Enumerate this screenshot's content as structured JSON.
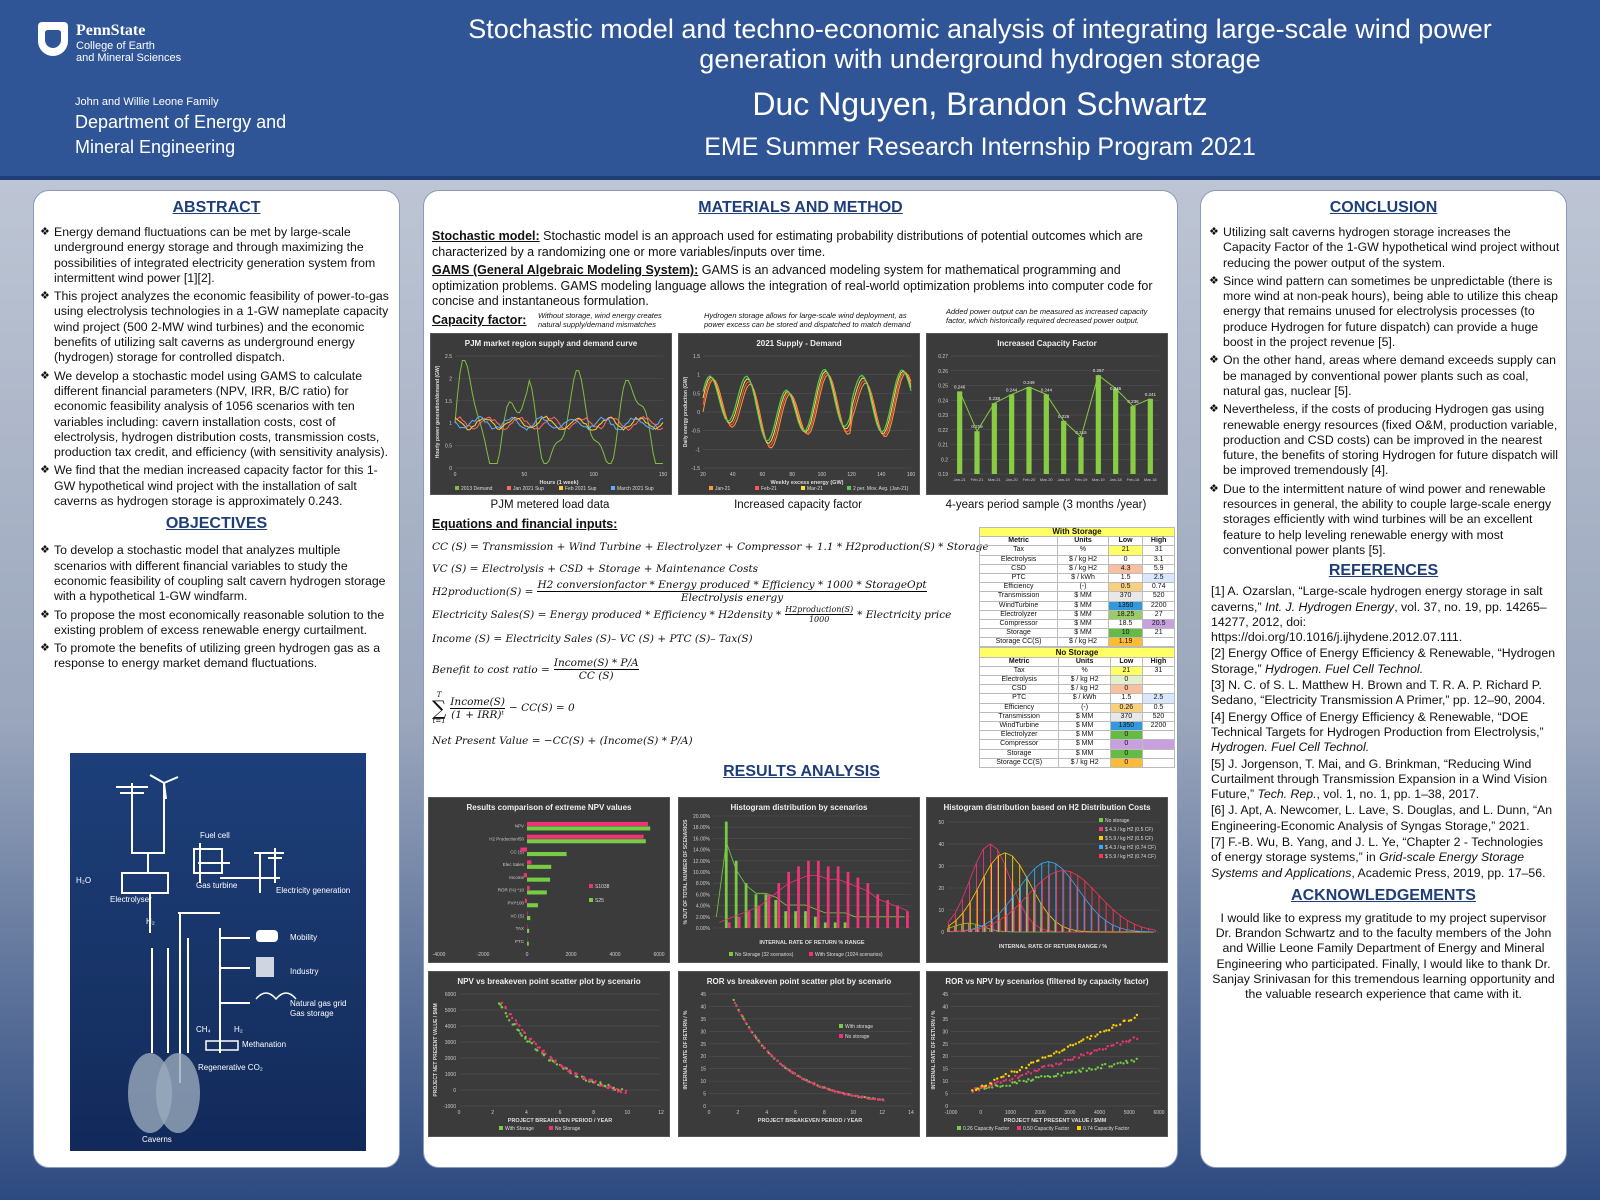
{
  "header": {
    "logo_name": "PennState",
    "logo_sub1": "College of Earth",
    "logo_sub2": "and Mineral Sciences",
    "dept_small": "John and Willie Leone Family",
    "dept_big1": "Department of Energy and",
    "dept_big2": "Mineral Engineering",
    "title_line1": "Stochastic model and techno-economic analysis of integrating large-scale wind power",
    "title_line2": "generation with underground hydrogen storage",
    "authors": "Duc Nguyen, Brandon Schwartz",
    "program": "EME Summer Research Internship Program 2021"
  },
  "abstract": {
    "heading": "ABSTRACT",
    "items": [
      "Energy demand fluctuations can be met by large-scale underground energy storage and through maximizing the possibilities of integrated electricity generation system from intermittent wind power [1][2].",
      "This project analyzes the economic feasibility of power-to-gas using electrolysis technologies in a 1-GW nameplate capacity wind project (500 2-MW wind turbines) and the economic benefits of utilizing salt caverns as underground energy (hydrogen) storage for controlled dispatch.",
      "We develop a stochastic model using GAMS to calculate different financial parameters (NPV, IRR, B/C ratio) for economic feasibility analysis of 1056 scenarios with ten variables including: cavern installation costs, cost of electrolysis, hydrogen distribution costs, transmission costs, production tax credit, and efficiency (with sensitivity analysis).",
      "We find that the median increased capacity factor for this 1-GW hypothetical wind project with the installation of salt caverns as hydrogen storage is approximately 0.243."
    ]
  },
  "objectives": {
    "heading": "OBJECTIVES",
    "items": [
      "To develop a stochastic model that analyzes multiple scenarios with different financial variables to study the economic feasibility of coupling salt cavern hydrogen storage with a hypothetical 1-GW windfarm.",
      "To propose the most economically reasonable solution to the existing problem of excess renewable energy curtailment.",
      "To promote the benefits of utilizing green hydrogen gas as a response to energy market demand fluctuations."
    ]
  },
  "diagram": {
    "fuel_cell": "Fuel cell",
    "h2o": "H₂O",
    "electrolyser": "Electrolyser",
    "gas_turbine": "Gas turbine",
    "electricity": "Electricity generation",
    "h2": "H₂",
    "mobility": "Mobility",
    "industry": "Industry",
    "gas_grid1": "Natural gas grid",
    "gas_grid2": "Gas storage",
    "ch4": "CH₄",
    "h2b": "H₂",
    "methanation": "Methanation",
    "co2": "Regenerative CO₂",
    "caverns": "Caverns"
  },
  "methods": {
    "heading": "MATERIALS AND METHOD",
    "stoch_label": "Stochastic model:",
    "stoch_text": " Stochastic model is an approach used for estimating probability distributions of potential outcomes which are characterized by a randomizing one or more variables/inputs over time.",
    "gams_label": "GAMS (General Algebraic Modeling System):",
    "gams_text": " GAMS is an advanced modeling system for mathematical programming and optimization problems. GAMS modeling language allows the integration of real-world optimization problems into computer code for concise and instantaneous formulation.",
    "cf_label": "Capacity factor:",
    "note1": "Without storage, wind energy creates natural supply/demand mismatches",
    "note2": "Hydrogen storage allows for large-scale wind deployment, as power excess can be stored and dispatched to match demand",
    "note3": "Added power output can be measured as increased capacity factor, which historically required decreased power output.",
    "cap1": "PJM metered load data",
    "cap2": "Increased capacity factor",
    "cap3": "4-years period sample (3 months /year)",
    "eq_label": "Equations and financial inputs:",
    "eq1": "CC (S) = Transmission + Wind Turbine + Electrolyzer + Compressor + 1.1 * H2production(S) * Storage",
    "eq2": "VC (S) =  Electrolysis + CSD + Storage + Maintenance Costs",
    "eq3a": "H2production(S) =",
    "eq3n": "H2 conversionfactor * Energy produced * Efficiency * 1000 * StorageOpt",
    "eq3d": "Electrolysis energy",
    "eq4a": "Electricity Sales(S) = Energy produced * Efficiency * H2density *",
    "eq4n": "H2production(S)",
    "eq4d": "1000",
    "eq4b": "* Electricity price",
    "eq5": "Income (S) =  Electricity Sales (S)– VC (S) +  PTC (S)– Tax(S)",
    "eq6a": "Benefit to cost ratio =",
    "eq6n": "Income(S) * P/A",
    "eq6d": "CC (S)",
    "eq7sum_top": "T",
    "eq7sum_bot": "t=1",
    "eq7n": "Income(S)",
    "eq7d": "(1 + IRR)ᵗ",
    "eq7b": "− CC(S) = 0",
    "eq8": "Net Present Value = −CC(S) + (Income(S) * P/A)"
  },
  "tables": {
    "with_title": "With Storage",
    "no_title": "No Storage",
    "cols": [
      "Metric",
      "Units",
      "Low",
      "High"
    ],
    "with_rows": [
      [
        "Tax",
        "%",
        "21",
        "31"
      ],
      [
        "Electrolysis",
        "$ / kg H2",
        "0",
        "3.1"
      ],
      [
        "CSD",
        "$ / kg H2",
        "4.3",
        "5.9"
      ],
      [
        "PTC",
        "$ / kWh",
        "1.5",
        "2.5"
      ],
      [
        "Efficiency",
        "(-)",
        "0.5",
        "0.74"
      ],
      [
        "Transmission",
        "$ MM",
        "370",
        "520"
      ],
      [
        "WindTurbine",
        "$ MM",
        "1350",
        "2200"
      ],
      [
        "Electrolyzer",
        "$ MM",
        "18.25",
        "27"
      ],
      [
        "Compressor",
        "$ MM",
        "18.5",
        "20.5"
      ],
      [
        "Storage",
        "$ MM",
        "10",
        "21"
      ],
      [
        "Storage CC(S)",
        "$ / kg H2",
        "1.19",
        ""
      ]
    ],
    "no_rows": [
      [
        "Tax",
        "%",
        "21",
        "31"
      ],
      [
        "Electrolysis",
        "$ / kg H2",
        "0",
        ""
      ],
      [
        "CSD",
        "$ / kg H2",
        "0",
        ""
      ],
      [
        "PTC",
        "$ / kWh",
        "1.5",
        "2.5"
      ],
      [
        "Efficiency",
        "(-)",
        "0.26",
        "0.5"
      ],
      [
        "Transmission",
        "$ MM",
        "370",
        "520"
      ],
      [
        "WindTurbine",
        "$ MM",
        "1350",
        "2200"
      ],
      [
        "Electrolyzer",
        "$ MM",
        "0",
        ""
      ],
      [
        "Compressor",
        "$ MM",
        "0",
        ""
      ],
      [
        "Storage",
        "$ MM",
        "0",
        ""
      ],
      [
        "Storage CC(S)",
        "$ / kg H2",
        "0",
        ""
      ]
    ]
  },
  "results": {
    "heading": "RESULTS ANALYSIS"
  },
  "conclusion": {
    "heading": "CONCLUSION",
    "items": [
      "Utilizing salt caverns hydrogen storage increases the Capacity Factor of the 1-GW hypothetical wind project without reducing the power output of the system.",
      "Since wind pattern can sometimes be unpredictable (there is more wind at non-peak hours), being able to utilize this cheap energy that remains unused for electrolysis processes (to produce Hydrogen for future dispatch) can provide a huge boost in the project revenue [5].",
      "On the other hand, areas where demand exceeds supply can be managed by conventional power plants such as coal, natural gas, nuclear [5].",
      "Nevertheless, if the costs of producing Hydrogen gas using renewable energy resources (fixed O&M, production variable, production and CSD costs) can be improved in the nearest future, the benefits of storing Hydrogen for future dispatch will be improved tremendously [4].",
      "Due to the intermittent nature of wind power and renewable resources in general, the ability to couple large-scale energy storages efficiently with wind turbines will be an excellent feature to help leveling renewable energy with most conventional power plants [5]."
    ]
  },
  "references": {
    "heading": "REFERENCES",
    "items": [
      {
        "pre": "[1] A. Ozarslan, “Large-scale hydrogen energy storage in salt caverns,” ",
        "it": "Int. J. Hydrogen Energy",
        "post": ", vol. 37, no. 19, pp. 14265–14277, 2012, doi: https://doi.org/10.1016/j.ijhydene.2012.07.111."
      },
      {
        "pre": "[2] Energy Office of Energy Efficiency & Renewable, “Hydrogen Storage,” ",
        "it": "Hydrogen. Fuel Cell Technol.",
        "post": ""
      },
      {
        "pre": "[3] N. C. of S. L. Matthew H. Brown and T. R. A. P. Richard P. Sedano, “Electricity Transmission A Primer,” pp. 12–90, 2004.",
        "it": "",
        "post": ""
      },
      {
        "pre": "[4] Energy Office of Energy Efficiency & Renewable, “DOE Technical Targets for Hydrogen Production from Electrolysis,” ",
        "it": "Hydrogen. Fuel Cell Technol.",
        "post": ""
      },
      {
        "pre": "[5] J. Jorgenson, T. Mai, and G. Brinkman, “Reducing Wind Curtailment through Transmission Expansion in a Wind Vision Future,” ",
        "it": "Tech. Rep.",
        "post": ", vol. 1, no. 1, pp. 1–38, 2017."
      },
      {
        "pre": "[6] J. Apt, A. Newcomer, L. Lave, S. Douglas, and L. Dunn, “An Engineering-Economic Analysis of Syngas Storage,” 2021.",
        "it": "",
        "post": ""
      },
      {
        "pre": "[7] F.-B. Wu, B. Yang, and J. L. Ye, “Chapter 2 - Technologies of energy storage systems,” in ",
        "it": "Grid-scale Energy Storage Systems and Applications",
        "post": ", Academic Press, 2019, pp. 17–56."
      }
    ]
  },
  "acknowledgements": {
    "heading": "ACKNOWLEDGEMENTS",
    "text": "I would like to express my gratitude to my project supervisor Dr. Brandon Schwartz and to the faculty members of the John and Willie Leone Family Department of Energy and Mineral Engineering who participated. Finally, I would like to thank Dr. Sanjay Srinivasan for this tremendous learning opportunity and the valuable research experience that came with it."
  },
  "chart_data": [
    {
      "type": "line",
      "title": "PJM market region supply and demand curve",
      "xlabel": "Hours (1 week)",
      "ylabel": "Hourly power generation/demand (GW)",
      "ylim": [
        0,
        2.5
      ],
      "xlim": [
        0,
        168
      ],
      "yticks": [
        "0",
        "0.5",
        "1",
        "1.5",
        "2",
        "2.5"
      ],
      "xticks": [
        "0",
        "50",
        "100",
        "150"
      ],
      "series": [
        {
          "name": "2013 Demand",
          "color": "#7fbf3f"
        },
        {
          "name": "Jan 2021 Sup",
          "color": "#ff6666"
        },
        {
          "name": "Feb 2021 Sup",
          "color": "#ffcc33"
        },
        {
          "name": "March 2021 Sup",
          "color": "#66aaff"
        }
      ]
    },
    {
      "type": "line",
      "title": "2021 Supply - Demand",
      "xlabel": "Weekly excess energy (GW)",
      "ylabel": "Daily energy production (GW)",
      "ylim": [
        -1.5,
        1.5
      ],
      "yticks": [
        "-1.5",
        "-1",
        "-0.5",
        "0",
        "0.5",
        "1",
        "1.5"
      ],
      "xticks": [
        "20",
        "40",
        "60",
        "80",
        "100",
        "120",
        "140",
        "160"
      ],
      "series": [
        {
          "name": "Jan-21",
          "color": "#ff9933"
        },
        {
          "name": "Feb-21",
          "color": "#ff5555"
        },
        {
          "name": "Mar-21",
          "color": "#ffdd33"
        },
        {
          "name": "2 per. Mov. Avg. (Jan-21)",
          "color": "#55cc55"
        }
      ]
    },
    {
      "type": "bar",
      "title": "Increased Capacity Factor",
      "ylim": [
        0.19,
        0.27
      ],
      "yticks": [
        "0.19",
        "0.2",
        "0.21",
        "0.22",
        "0.23",
        "0.24",
        "0.25",
        "0.26",
        "0.27"
      ],
      "categories": [
        "Jan-21",
        "Feb-21",
        "Mar-21",
        "Jan-20",
        "Feb-20",
        "Mar-20",
        "Jan-19",
        "Feb-19",
        "Mar-19",
        "Jan-18",
        "Feb-18",
        "Mar-18"
      ],
      "values": [
        0.246,
        0.219,
        0.238,
        0.244,
        0.249,
        0.244,
        0.226,
        0.215,
        0.257,
        0.248,
        0.236,
        0.241
      ],
      "labels": [
        "0.246",
        "0.219",
        "0.238",
        "0.244",
        "0.249",
        "0.244",
        "0.226",
        "0.215",
        "0.257",
        "",
        "0.236",
        "0.241"
      ],
      "label_extra": "0.245"
    },
    {
      "type": "bar",
      "title": "Results comparison of extreme NPV values",
      "categories": [
        "NPV",
        "H2 Production/50",
        "CC (S)",
        "Elec Sales",
        "Income",
        "ROR (%) *10",
        "PVI*100",
        "VC (S)",
        "TAX",
        "PTC"
      ],
      "series": [
        {
          "name": "S1038",
          "color": "#ee3377",
          "values": [
            5500,
            5300,
            -300,
            200,
            -150,
            120,
            -100,
            30,
            20,
            10
          ]
        },
        {
          "name": "S25",
          "color": "#77cc44",
          "values": [
            5600,
            5400,
            1800,
            1100,
            1050,
            900,
            500,
            150,
            100,
            80
          ]
        }
      ],
      "xlim": [
        -4000,
        6000
      ],
      "xticks": [
        "-4000",
        "-2000",
        "0",
        "2000",
        "4000",
        "6000"
      ]
    },
    {
      "type": "bar",
      "title": "Histogram distribution by scenarios",
      "xlabel": "INTERNAL RATE OF RETURN % RANGE",
      "ylabel": "% OUT OF TOTAL NUMBER OF SCENARIOS",
      "yticks": [
        "0.00%",
        "2.00%",
        "4.00%",
        "6.00%",
        "8.00%",
        "10.00%",
        "12.00%",
        "14.00%",
        "16.00%",
        "18.00%",
        "20.00%"
      ],
      "series": [
        {
          "name": "No Storage (32 scenarios)",
          "color": "#77cc44",
          "values": [
            0,
            19,
            12,
            8,
            6,
            6,
            5,
            3,
            3,
            3,
            2,
            1,
            1,
            1,
            0,
            0,
            0,
            0,
            0,
            0
          ]
        },
        {
          "name": "With Storage (1024 scenarios)",
          "color": "#ee3377",
          "values": [
            0,
            1,
            2,
            3,
            4,
            6,
            8,
            10,
            11,
            12,
            12,
            11,
            11,
            10,
            9,
            8,
            6,
            5,
            4,
            3
          ]
        }
      ]
    },
    {
      "type": "bar",
      "title": "Histogram distribution based on H2 Distribution Costs",
      "xlabel": "INTERNAL RATE OF RETURN RANGE / %",
      "yticks": [
        "0",
        "10",
        "20",
        "30",
        "40",
        "50"
      ],
      "series": [
        {
          "name": "No storage",
          "color": "#77cc44"
        },
        {
          "name": "$ 4.3 / kg H2 (0.5 CF)",
          "color": "#ee3377"
        },
        {
          "name": "$ 5.9 / kg H2 (0.5 CF)",
          "color": "#ffcc00"
        },
        {
          "name": "$ 4.3 / kg H2 (0.74 CF)",
          "color": "#33aaff"
        },
        {
          "name": "$ 5.9 / kg H2 (0.74 CF)",
          "color": "#ff3355"
        }
      ]
    },
    {
      "type": "scatter",
      "title": "NPV vs breakeven point scatter plot by scenario",
      "xlabel": "PROJECT BREAKEVEN PERIOD / YEAR",
      "ylabel": "PROJECT NET PRESENT VALUE / $MM",
      "yticks": [
        "-1000",
        "0",
        "1000",
        "2000",
        "3000",
        "4000",
        "5000",
        "6000"
      ],
      "xticks": [
        "0",
        "2",
        "4",
        "6",
        "8",
        "10",
        "12"
      ],
      "series": [
        {
          "name": "With Storage",
          "color": "#77cc44"
        },
        {
          "name": "No Storage",
          "color": "#ee3377"
        }
      ]
    },
    {
      "type": "scatter",
      "title": "ROR vs breakeven point scatter plot by scenario",
      "xlabel": "PROJECT BREAKEVEN PERIOD / YEAR",
      "ylabel": "INTERNAL RATE OF RETURN / %",
      "yticks": [
        "0",
        "5",
        "10",
        "15",
        "20",
        "25",
        "30",
        "35",
        "40",
        "45"
      ],
      "xticks": [
        "0",
        "2",
        "4",
        "6",
        "8",
        "10",
        "12",
        "14"
      ],
      "series": [
        {
          "name": "With storage",
          "color": "#77cc44"
        },
        {
          "name": "No storage",
          "color": "#ee3377"
        }
      ]
    },
    {
      "type": "scatter",
      "title": "ROR vs NPV by scenarios (filtered by capacity factor)",
      "xlabel": "PROJECT NET PRESENT VALUE / $MM",
      "ylabel": "INTERNAL RATE OF RETURN / %",
      "yticks": [
        "0",
        "5",
        "10",
        "15",
        "20",
        "25",
        "30",
        "35",
        "40",
        "45"
      ],
      "xticks": [
        "-1000",
        "0",
        "1000",
        "2000",
        "3000",
        "4000",
        "5000",
        "6000"
      ],
      "series": [
        {
          "name": "0.26 Capacity Factor",
          "color": "#77cc44"
        },
        {
          "name": "0.50 Capacity Factor",
          "color": "#ee3377"
        },
        {
          "name": "0.74 Capacity Factor",
          "color": "#ffcc00"
        }
      ]
    }
  ]
}
